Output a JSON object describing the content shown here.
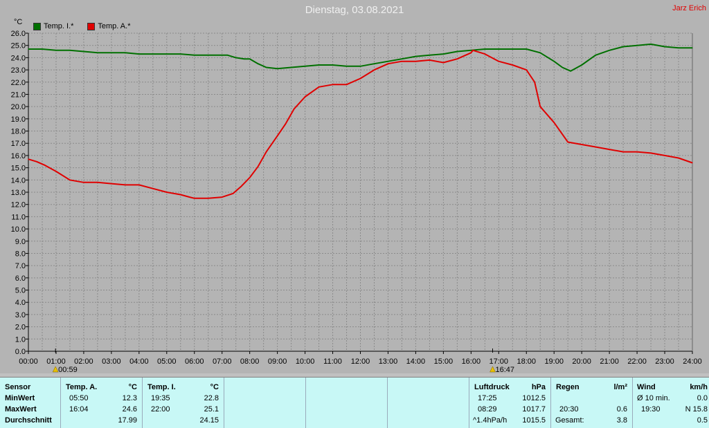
{
  "header": {
    "title": "Dienstag, 03.08.2021",
    "author": "Jarz Erich",
    "unit": "°C"
  },
  "chart_data": {
    "type": "line",
    "title": "Dienstag, 03.08.2021",
    "ylabel": "°C",
    "xlabel": "",
    "ylim": [
      0,
      26
    ],
    "xlim": [
      0,
      24
    ],
    "grid": true,
    "legend_position": "top-left",
    "yticks": [
      "0.0",
      "1.0",
      "2.0",
      "3.0",
      "4.0",
      "5.0",
      "6.0",
      "7.0",
      "8.0",
      "9.0",
      "10.0",
      "11.0",
      "12.0",
      "13.0",
      "14.0",
      "15.0",
      "16.0",
      "17.0",
      "18.0",
      "19.0",
      "20.0",
      "21.0",
      "22.0",
      "23.0",
      "24.0",
      "25.0",
      "26.0"
    ],
    "xticks": [
      "00:00",
      "01:00",
      "02:00",
      "03:00",
      "04:00",
      "05:00",
      "06:00",
      "07:00",
      "08:00",
      "09:00",
      "10:00",
      "11:00",
      "12:00",
      "13:00",
      "14:00",
      "15:00",
      "16:00",
      "17:00",
      "18:00",
      "19:00",
      "20:00",
      "21:00",
      "22:00",
      "23:00",
      "24:00"
    ],
    "markers": [
      {
        "label": "00:59",
        "x": 0.98
      },
      {
        "label": "16:47",
        "x": 16.78
      }
    ],
    "series": [
      {
        "name": "Temp. I.*",
        "color": "#007000",
        "x": [
          0,
          0.5,
          1,
          1.5,
          2,
          2.5,
          3,
          3.5,
          4,
          4.5,
          5,
          5.5,
          6,
          6.5,
          7,
          7.2,
          7.5,
          7.8,
          8,
          8.3,
          8.6,
          9,
          9.5,
          10,
          10.5,
          11,
          11.5,
          12,
          12.5,
          13,
          13.5,
          14,
          14.5,
          15,
          15.5,
          16,
          16.5,
          17,
          17.5,
          18,
          18.5,
          19,
          19.3,
          19.6,
          20,
          20.5,
          21,
          21.5,
          22,
          22.5,
          23,
          23.5,
          24
        ],
        "y": [
          24.7,
          24.7,
          24.6,
          24.6,
          24.5,
          24.4,
          24.4,
          24.4,
          24.3,
          24.3,
          24.3,
          24.3,
          24.2,
          24.2,
          24.2,
          24.2,
          24.0,
          23.9,
          23.9,
          23.5,
          23.2,
          23.1,
          23.2,
          23.3,
          23.4,
          23.4,
          23.3,
          23.3,
          23.5,
          23.7,
          23.9,
          24.1,
          24.2,
          24.3,
          24.5,
          24.6,
          24.7,
          24.7,
          24.7,
          24.7,
          24.4,
          23.7,
          23.2,
          22.9,
          23.4,
          24.2,
          24.6,
          24.9,
          25.0,
          25.1,
          24.9,
          24.8,
          24.8
        ]
      },
      {
        "name": "Temp. A.*",
        "color": "#e00000",
        "x": [
          0,
          0.3,
          0.6,
          1,
          1.5,
          2,
          2.5,
          3,
          3.5,
          4,
          4.5,
          5,
          5.5,
          5.83,
          6,
          6.5,
          7,
          7.4,
          7.7,
          8,
          8.3,
          8.6,
          9,
          9.3,
          9.6,
          10,
          10.5,
          11,
          11.5,
          12,
          12.5,
          13,
          13.5,
          14,
          14.5,
          15,
          15.5,
          16,
          16.07,
          16.5,
          17,
          17.5,
          18,
          18.3,
          18.5,
          19,
          19.5,
          20,
          20.5,
          21,
          21.5,
          22,
          22.5,
          23,
          23.5,
          24
        ],
        "y": [
          15.7,
          15.5,
          15.2,
          14.7,
          14.0,
          13.8,
          13.8,
          13.7,
          13.6,
          13.6,
          13.3,
          13.0,
          12.8,
          12.6,
          12.5,
          12.5,
          12.6,
          12.9,
          13.5,
          14.2,
          15.1,
          16.3,
          17.6,
          18.6,
          19.8,
          20.8,
          21.6,
          21.8,
          21.8,
          22.3,
          23.0,
          23.5,
          23.7,
          23.7,
          23.8,
          23.6,
          23.9,
          24.4,
          24.6,
          24.3,
          23.7,
          23.4,
          23.0,
          22.0,
          20.0,
          18.7,
          17.1,
          16.9,
          16.7,
          16.5,
          16.3,
          16.3,
          16.2,
          16.0,
          15.8,
          15.4
        ]
      }
    ]
  },
  "table": {
    "sensor": {
      "header": "Sensor",
      "min": "MinWert",
      "max": "MaxWert",
      "avg": "Durchschnitt"
    },
    "temp_a": {
      "header": "Temp. A.",
      "unit": "°C",
      "min_time": "05:50",
      "min_val": "12.3",
      "max_time": "16:04",
      "max_val": "24.6",
      "avg_val": "17.99"
    },
    "temp_i": {
      "header": "Temp. I.",
      "unit": "°C",
      "min_time": "19:35",
      "min_val": "22.8",
      "max_time": "22:00",
      "max_val": "25.1",
      "avg_val": "24.15"
    },
    "luftdruck": {
      "header": "Luftdruck",
      "unit": "hPa",
      "min_time": "17:25",
      "min_val": "1012.5",
      "max_time": "08:29",
      "max_val": "1017.7",
      "trend_label": "^1.4hPa/h",
      "trend_val": "1015.5"
    },
    "regen": {
      "header": "Regen",
      "unit": "l/m²",
      "max_time": "20:30",
      "max_val": "0.6",
      "total_label": "Gesamt:",
      "total_val": "3.8"
    },
    "wind": {
      "header": "Wind",
      "unit": "km/h",
      "avg_label": "Ø 10 min.",
      "avg_val": "0.0",
      "max_time": "19:30",
      "max_val": "N 15.8",
      "last_val": "0.5"
    }
  }
}
